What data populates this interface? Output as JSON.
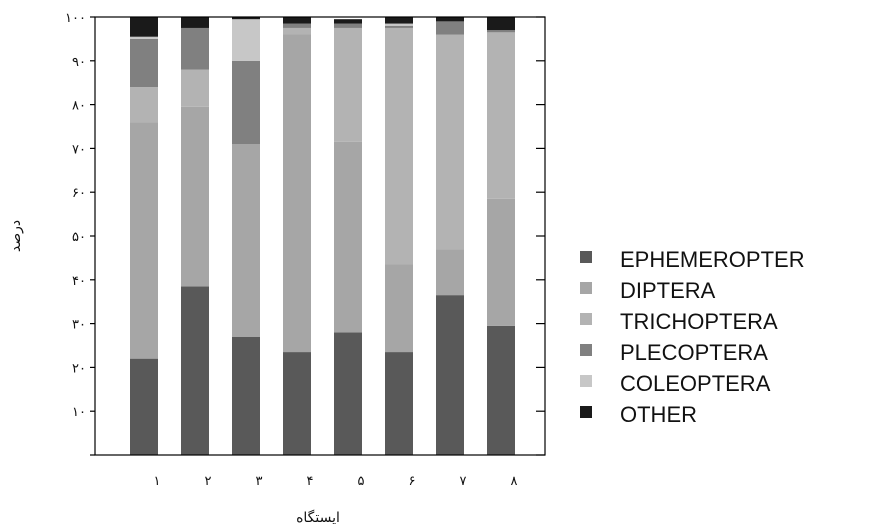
{
  "chart_data": {
    "type": "bar",
    "stacked": true,
    "percent": true,
    "categories": [
      "۱",
      "۲",
      "۳",
      "۴",
      "۵",
      "۶",
      "۷",
      "۸"
    ],
    "xlabel": "ایستگاه",
    "ylabel": "درصد",
    "ylim": [
      0,
      100
    ],
    "yticks": [
      0,
      10,
      20,
      30,
      40,
      50,
      60,
      70,
      80,
      90,
      100
    ],
    "ytick_labels": [
      "",
      "۱۰",
      "۲۰",
      "۳۰",
      "۴۰",
      "۵۰",
      "۶۰",
      "۷۰",
      "۸۰",
      "۹۰",
      "۱۰۰"
    ],
    "legend_position": "right",
    "grid": false,
    "series": [
      {
        "name": "EPHEMEROPTER",
        "color": "#595959",
        "values": [
          22,
          38.5,
          27,
          23.5,
          28,
          23.5,
          36.5,
          29.5
        ]
      },
      {
        "name": "DIPTERA",
        "color": "#a6a6a6",
        "values": [
          54,
          41,
          44,
          72.5,
          43.5,
          20,
          10.5,
          29
        ]
      },
      {
        "name": "TRICHOPTERA",
        "color": "#b3b3b3",
        "values": [
          8,
          8.5,
          0,
          1.5,
          26,
          54,
          49,
          38
        ]
      },
      {
        "name": "PLECOPTERA",
        "color": "#808080",
        "values": [
          11,
          9.5,
          19,
          1,
          1,
          0.5,
          3,
          0.5
        ]
      },
      {
        "name": "COLEOPTERA",
        "color": "#c7c7c7",
        "values": [
          0.5,
          0,
          9.5,
          0,
          0,
          0.5,
          0,
          0
        ]
      },
      {
        "name": "OTHER",
        "color": "#1a1a1a",
        "values": [
          4.5,
          2.5,
          0.5,
          1.5,
          1,
          1.5,
          1,
          3
        ]
      }
    ]
  }
}
